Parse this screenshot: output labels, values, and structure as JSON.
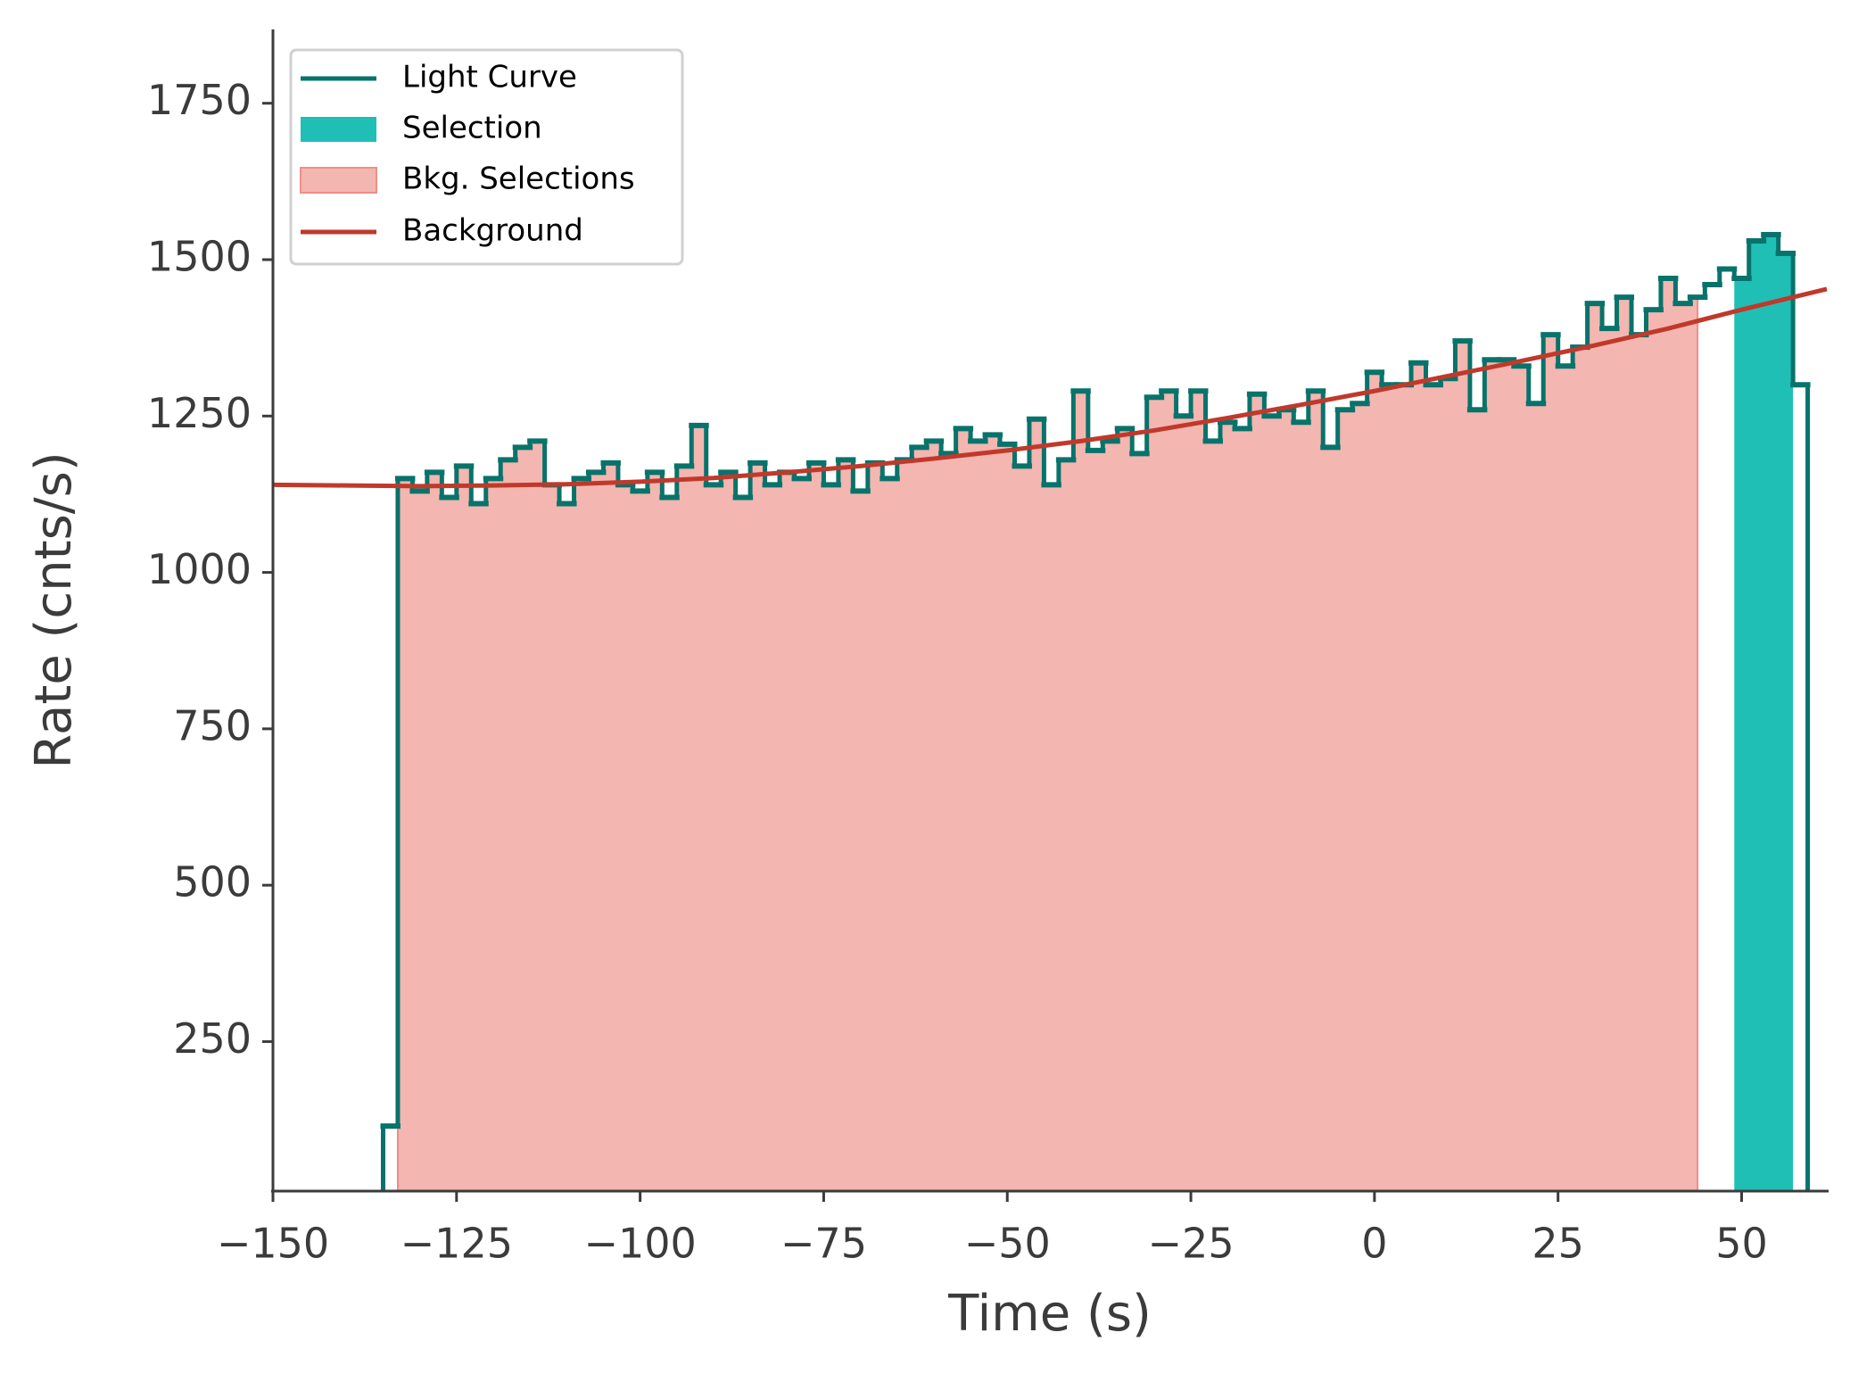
{
  "chart_data": {
    "type": "lightcurve",
    "xlabel": "Time (s)",
    "ylabel": "Rate (cnts/s)",
    "xlim": [
      -150,
      61.6
    ],
    "ylim": [
      11,
      1868
    ],
    "xticks": [
      {
        "value": -150,
        "label": "−150"
      },
      {
        "value": -125,
        "label": "−125"
      },
      {
        "value": -100,
        "label": "−100"
      },
      {
        "value": -75,
        "label": "−75"
      },
      {
        "value": -50,
        "label": "−50"
      },
      {
        "value": -25,
        "label": "−25"
      },
      0,
      25,
      50
    ],
    "yticks": [
      250,
      500,
      750,
      1000,
      1250,
      1500,
      1750
    ],
    "legend": "upper left",
    "light_curve": {
      "name": "Light Curve",
      "color": "#08736b",
      "bins": [
        -135,
        -133,
        -131,
        -129,
        -127,
        -125,
        -123,
        -121,
        -119,
        -117,
        -115,
        -113,
        -111,
        -109,
        -107,
        -105,
        -103,
        -101,
        -99,
        -97,
        -95,
        -93,
        -91,
        -89,
        -87,
        -85,
        -83,
        -81,
        -79,
        -77,
        -75,
        -73,
        -71,
        -69,
        -67,
        -65,
        -63,
        -61,
        -59,
        -57,
        -55,
        -53,
        -51,
        -49,
        -47,
        -45,
        -43,
        -41,
        -39,
        -37,
        -35,
        -33,
        -31,
        -29,
        -27,
        -25,
        -23,
        -21,
        -19,
        -17,
        -15,
        -13,
        -11,
        -9,
        -7,
        -5,
        -3,
        -1,
        1,
        3,
        5,
        7,
        9,
        11,
        13,
        15,
        17,
        19,
        21,
        23,
        25,
        27,
        29,
        31,
        33,
        35,
        37,
        39,
        41,
        43,
        45,
        47,
        49,
        51,
        53,
        55,
        57,
        59
      ],
      "values": [
        115,
        1150,
        1130,
        1160,
        1120,
        1170,
        1110,
        1150,
        1180,
        1200,
        1210,
        1140,
        1110,
        1150,
        1160,
        1175,
        1140,
        1130,
        1160,
        1120,
        1170,
        1235,
        1140,
        1160,
        1120,
        1175,
        1140,
        1160,
        1150,
        1175,
        1140,
        1180,
        1130,
        1175,
        1150,
        1180,
        1200,
        1210,
        1190,
        1230,
        1210,
        1220,
        1205,
        1170,
        1245,
        1140,
        1180,
        1290,
        1195,
        1210,
        1230,
        1190,
        1280,
        1290,
        1250,
        1290,
        1210,
        1240,
        1230,
        1285,
        1250,
        1260,
        1240,
        1290,
        1200,
        1260,
        1270,
        1320,
        1300,
        1300,
        1335,
        1300,
        1310,
        1370,
        1260,
        1340,
        1340,
        1330,
        1270,
        1380,
        1330,
        1360,
        1430,
        1390,
        1440,
        1380,
        1420,
        1470,
        1430,
        1440,
        1460,
        1485,
        1470,
        1530,
        1540,
        1510,
        1300
      ]
    },
    "selection": {
      "name": "Selection",
      "color": "#20bfb5",
      "range": [
        49,
        57
      ]
    },
    "bkg_selections": {
      "name": "Bkg. Selections",
      "color": "#f4b6b0",
      "edgecolor": "#ef8f86",
      "range": [
        -133,
        44
      ]
    },
    "background": {
      "name": "Background",
      "color": "#c0392b",
      "x": [
        -150,
        -140,
        -130,
        -120,
        -110,
        -100,
        -90,
        -80,
        -70,
        -60,
        -50,
        -40,
        -30,
        -20,
        -10,
        0,
        10,
        20,
        30,
        40,
        50,
        61.6
      ],
      "values": [
        1140,
        1139,
        1138,
        1139,
        1141,
        1145,
        1151,
        1160,
        1170,
        1182,
        1195,
        1210,
        1227,
        1247,
        1268,
        1290,
        1314,
        1338,
        1363,
        1390,
        1420,
        1453
      ]
    }
  }
}
